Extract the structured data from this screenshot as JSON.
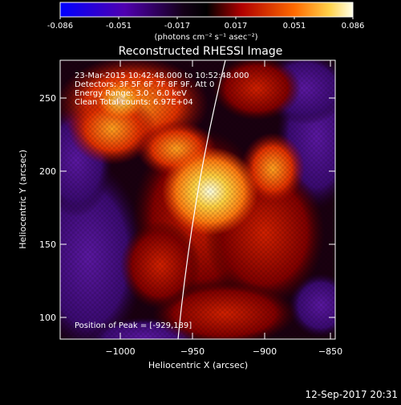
{
  "colorbar": {
    "ticks": [
      "-0.086",
      "-0.051",
      "-0.017",
      "0.017",
      "0.051",
      "0.086"
    ],
    "unit_label": "(photons cm⁻² s⁻¹ asec⁻²)",
    "colors": [
      "#0000ff",
      "#4400aa",
      "#000000",
      "#aa0000",
      "#ff6600",
      "#ffffdd"
    ]
  },
  "plot": {
    "title": "Reconstructed RHESSI Image",
    "xlabel": "Heliocentric X (arcsec)",
    "ylabel": "Heliocentric Y (arcsec)",
    "x_ticks": [
      "−1000",
      "−950",
      "−900",
      "−850"
    ],
    "y_ticks": [
      "250",
      "200",
      "150",
      "100"
    ],
    "info_lines": [
      "23-Mar-2015 10:42:48.000 to 10:52:48.000",
      "Detectors: 3F 5F 6F 7F 8F 9F, Att 0",
      "Energy Range: 3.0 - 6.0 keV",
      "Clean     Total counts: 6.97E+04"
    ],
    "peak_label": "Position of Peak = [-929,189]"
  },
  "footer": {
    "timestamp": "12-Sep-2017 20:31"
  }
}
